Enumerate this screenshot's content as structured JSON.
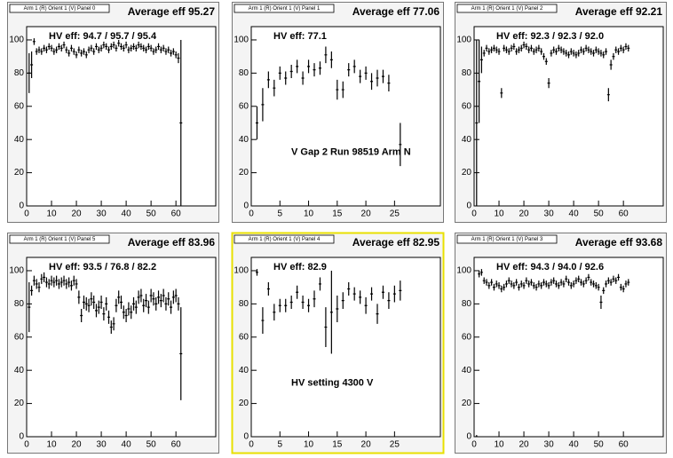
{
  "chart_data": [
    {
      "type": "scatter",
      "title": "Arm 1 (R) Orient 1 (V) Panel 0",
      "average": "Average eff 95.27",
      "hv_eff": "HV eff:   94.7 / 95.7 / 95.4",
      "color": "#000000",
      "xlim": [
        0,
        76
      ],
      "ylim": [
        0,
        108
      ],
      "xticks": [
        0,
        10,
        20,
        30,
        40,
        50,
        60
      ],
      "yticks": [
        0,
        20,
        40,
        60,
        80,
        100
      ],
      "x": [
        1,
        2,
        3,
        4,
        5,
        6,
        7,
        8,
        9,
        10,
        11,
        12,
        13,
        14,
        15,
        16,
        17,
        18,
        19,
        20,
        21,
        22,
        23,
        24,
        25,
        26,
        27,
        28,
        29,
        30,
        31,
        32,
        33,
        34,
        35,
        36,
        37,
        38,
        39,
        40,
        41,
        42,
        43,
        44,
        45,
        46,
        47,
        48,
        49,
        50,
        51,
        52,
        53,
        54,
        55,
        56,
        57,
        58,
        59,
        60,
        61,
        62
      ],
      "values": [
        80,
        85,
        99,
        93,
        94,
        93,
        95,
        94,
        96,
        95,
        93,
        94,
        96,
        95,
        97,
        94,
        92,
        95,
        93,
        91,
        94,
        92,
        93,
        91,
        94,
        95,
        93,
        96,
        94,
        95,
        97,
        96,
        94,
        96,
        97,
        95,
        98,
        96,
        95,
        97,
        94,
        95,
        96,
        95,
        97,
        96,
        95,
        94,
        96,
        95,
        93,
        94,
        96,
        94,
        95,
        93,
        94,
        92,
        93,
        91,
        89,
        50
      ],
      "errors": [
        12,
        8,
        2,
        2,
        2,
        2,
        2,
        2,
        2,
        2,
        2,
        2,
        2,
        2,
        2,
        2,
        2,
        2,
        2,
        2,
        2,
        2,
        2,
        2,
        2,
        2,
        2,
        2,
        2,
        2,
        2,
        2,
        2,
        2,
        2,
        2,
        2,
        2,
        2,
        2,
        2,
        2,
        2,
        2,
        2,
        2,
        2,
        2,
        2,
        2,
        2,
        2,
        2,
        2,
        2,
        2,
        2,
        2,
        2,
        2,
        3,
        50
      ]
    },
    {
      "type": "scatter",
      "title": "Arm 1 (R) Orient 1 (V) Panel 1",
      "average": "Average eff 77.06",
      "hv_eff": "HV eff:   77.1",
      "annotation": "V Gap 2 Run 98519 Arm N",
      "color": "#000000",
      "xlim": [
        0,
        33
      ],
      "ylim": [
        0,
        108
      ],
      "xticks": [
        0,
        5,
        10,
        15,
        20,
        25
      ],
      "yticks": [
        0,
        20,
        40,
        60,
        80,
        100
      ],
      "x": [
        1,
        2,
        3,
        4,
        5,
        6,
        7,
        8,
        9,
        10,
        11,
        12,
        13,
        14,
        15,
        16,
        17,
        18,
        19,
        20,
        21,
        22,
        23,
        24,
        26
      ],
      "values": [
        50,
        61,
        76,
        71,
        80,
        77,
        81,
        84,
        77,
        84,
        82,
        83,
        91,
        88,
        70,
        70,
        82,
        84,
        78,
        80,
        75,
        77,
        78,
        74,
        37
      ],
      "errors": [
        10,
        10,
        5,
        5,
        4,
        4,
        4,
        4,
        4,
        4,
        4,
        4,
        5,
        5,
        6,
        5,
        4,
        4,
        4,
        4,
        5,
        5,
        4,
        5,
        13
      ]
    },
    {
      "type": "scatter",
      "title": "Arm 1 (R) Orient 1 (V) Panel 2",
      "average": "Average eff 92.21",
      "hv_eff": "HV eff:   92.3 / 92.3 / 92.0",
      "color": "#000000",
      "xlim": [
        0,
        76
      ],
      "ylim": [
        0,
        108
      ],
      "xticks": [
        0,
        10,
        20,
        30,
        40,
        50,
        60
      ],
      "yticks": [
        0,
        20,
        40,
        60,
        80,
        100
      ],
      "x": [
        1,
        2,
        3,
        4,
        5,
        6,
        7,
        8,
        9,
        10,
        11,
        12,
        13,
        14,
        15,
        16,
        17,
        18,
        19,
        20,
        21,
        22,
        23,
        24,
        25,
        26,
        27,
        28,
        29,
        30,
        31,
        32,
        33,
        34,
        35,
        36,
        37,
        38,
        39,
        40,
        41,
        42,
        43,
        44,
        45,
        46,
        47,
        48,
        49,
        50,
        51,
        52,
        53,
        54,
        55,
        56,
        57,
        58,
        59,
        60,
        61,
        62
      ],
      "values": [
        50,
        75,
        88,
        92,
        95,
        93,
        94,
        95,
        94,
        93,
        68,
        95,
        94,
        93,
        95,
        96,
        93,
        94,
        95,
        97,
        96,
        94,
        95,
        93,
        94,
        95,
        93,
        90,
        87,
        74,
        92,
        94,
        93,
        95,
        94,
        93,
        92,
        91,
        93,
        92,
        91,
        92,
        94,
        93,
        95,
        94,
        93,
        92,
        94,
        93,
        92,
        91,
        93,
        67,
        85,
        90,
        94,
        93,
        95,
        94,
        96,
        95
      ],
      "errors": [
        50,
        25,
        8,
        2,
        2,
        2,
        2,
        2,
        2,
        2,
        3,
        2,
        2,
        2,
        2,
        2,
        2,
        2,
        2,
        2,
        2,
        2,
        2,
        2,
        2,
        2,
        2,
        2,
        2,
        3,
        2,
        2,
        2,
        2,
        2,
        2,
        2,
        2,
        2,
        2,
        2,
        2,
        2,
        2,
        2,
        2,
        2,
        2,
        2,
        2,
        2,
        2,
        2,
        4,
        3,
        2,
        2,
        2,
        2,
        2,
        2,
        2
      ]
    },
    {
      "type": "scatter",
      "title": "Arm 1 (R) Orient 1 (V) Panel 5",
      "average": "Average eff 83.96",
      "hv_eff": "HV eff:   93.5 / 76.8 / 82.2",
      "color": "#000000",
      "xlim": [
        0,
        76
      ],
      "ylim": [
        0,
        108
      ],
      "xticks": [
        0,
        10,
        20,
        30,
        40,
        50,
        60
      ],
      "yticks": [
        0,
        20,
        40,
        60,
        80,
        100
      ],
      "x": [
        1,
        2,
        3,
        4,
        5,
        6,
        7,
        8,
        9,
        10,
        11,
        12,
        13,
        14,
        15,
        16,
        17,
        18,
        19,
        20,
        21,
        22,
        23,
        24,
        25,
        26,
        27,
        28,
        29,
        30,
        31,
        32,
        33,
        34,
        35,
        36,
        37,
        38,
        39,
        40,
        41,
        42,
        43,
        44,
        45,
        46,
        47,
        48,
        49,
        50,
        51,
        52,
        53,
        54,
        55,
        56,
        57,
        58,
        59,
        60,
        61,
        62
      ],
      "values": [
        78,
        88,
        94,
        92,
        90,
        95,
        96,
        93,
        92,
        94,
        93,
        94,
        92,
        93,
        94,
        92,
        93,
        91,
        94,
        92,
        84,
        73,
        81,
        80,
        79,
        83,
        81,
        76,
        78,
        81,
        74,
        80,
        72,
        66,
        68,
        79,
        84,
        81,
        75,
        73,
        77,
        75,
        80,
        78,
        84,
        85,
        79,
        82,
        78,
        85,
        83,
        80,
        84,
        82,
        85,
        80,
        83,
        78,
        84,
        85,
        80,
        50
      ],
      "errors": [
        15,
        3,
        3,
        3,
        3,
        3,
        3,
        3,
        3,
        3,
        3,
        3,
        3,
        3,
        3,
        3,
        3,
        3,
        3,
        3,
        4,
        4,
        4,
        4,
        4,
        4,
        4,
        4,
        4,
        4,
        4,
        4,
        4,
        4,
        4,
        4,
        4,
        4,
        4,
        4,
        4,
        4,
        4,
        4,
        4,
        4,
        4,
        4,
        4,
        4,
        4,
        4,
        4,
        4,
        4,
        4,
        4,
        4,
        4,
        4,
        4,
        28
      ]
    },
    {
      "type": "scatter",
      "title": "Arm 1 (R) Orient 1 (V) Panel 4",
      "average": "Average eff 82.95",
      "hv_eff": "HV eff:   82.9",
      "annotation": "HV setting 4300 V",
      "color": "#000000",
      "xlim": [
        0,
        33
      ],
      "ylim": [
        0,
        108
      ],
      "xticks": [
        0,
        5,
        10,
        15,
        20,
        25
      ],
      "yticks": [
        0,
        20,
        40,
        60,
        80,
        100
      ],
      "x": [
        1,
        2,
        3,
        4,
        5,
        6,
        7,
        8,
        9,
        10,
        11,
        12,
        13,
        14,
        15,
        16,
        17,
        18,
        19,
        20,
        21,
        22,
        23,
        24,
        25,
        26
      ],
      "values": [
        99,
        70,
        89,
        75,
        79,
        79,
        81,
        87,
        81,
        79,
        83,
        92,
        66,
        75,
        77,
        82,
        89,
        86,
        84,
        79,
        86,
        74,
        87,
        82,
        86,
        88
      ],
      "errors": [
        2,
        8,
        4,
        5,
        4,
        4,
        4,
        4,
        4,
        4,
        5,
        4,
        12,
        25,
        8,
        5,
        4,
        4,
        4,
        5,
        4,
        6,
        4,
        5,
        5,
        6
      ]
    },
    {
      "type": "scatter",
      "title": "Arm 1 (R) Orient 1 (V) Panel 3",
      "average": "Average eff 93.68",
      "hv_eff": "HV eff:   94.3 / 94.0 / 92.6",
      "color": "#000000",
      "xlim": [
        0,
        76
      ],
      "ylim": [
        0,
        108
      ],
      "xticks": [
        0,
        10,
        20,
        30,
        40,
        50,
        60
      ],
      "yticks": [
        0,
        20,
        40,
        60,
        80,
        100
      ],
      "x": [
        1,
        2,
        3,
        4,
        5,
        6,
        7,
        8,
        9,
        10,
        11,
        12,
        13,
        14,
        15,
        16,
        17,
        18,
        19,
        20,
        21,
        22,
        23,
        24,
        25,
        26,
        27,
        28,
        29,
        30,
        31,
        32,
        33,
        34,
        35,
        36,
        37,
        38,
        39,
        40,
        41,
        42,
        43,
        44,
        45,
        46,
        47,
        48,
        49,
        50,
        51,
        52,
        53,
        54,
        55,
        56,
        57,
        58,
        59,
        60,
        61,
        62
      ],
      "values": [
        0,
        98,
        99,
        94,
        93,
        91,
        93,
        90,
        92,
        91,
        89,
        90,
        92,
        94,
        92,
        91,
        93,
        90,
        92,
        91,
        94,
        92,
        93,
        91,
        90,
        92,
        91,
        93,
        92,
        91,
        93,
        94,
        92,
        91,
        93,
        92,
        95,
        93,
        91,
        92,
        94,
        95,
        93,
        92,
        94,
        96,
        93,
        92,
        91,
        90,
        81,
        88,
        92,
        94,
        93,
        95,
        94,
        96,
        90,
        89,
        92,
        93
      ],
      "errors": [
        1,
        2,
        2,
        2,
        2,
        2,
        2,
        2,
        2,
        2,
        2,
        2,
        2,
        2,
        2,
        2,
        2,
        2,
        2,
        2,
        2,
        2,
        2,
        2,
        2,
        2,
        2,
        2,
        2,
        2,
        2,
        2,
        2,
        2,
        2,
        2,
        2,
        2,
        2,
        2,
        2,
        2,
        2,
        2,
        2,
        2,
        2,
        2,
        2,
        2,
        4,
        2,
        2,
        2,
        2,
        2,
        2,
        2,
        2,
        2,
        2,
        2
      ]
    }
  ]
}
